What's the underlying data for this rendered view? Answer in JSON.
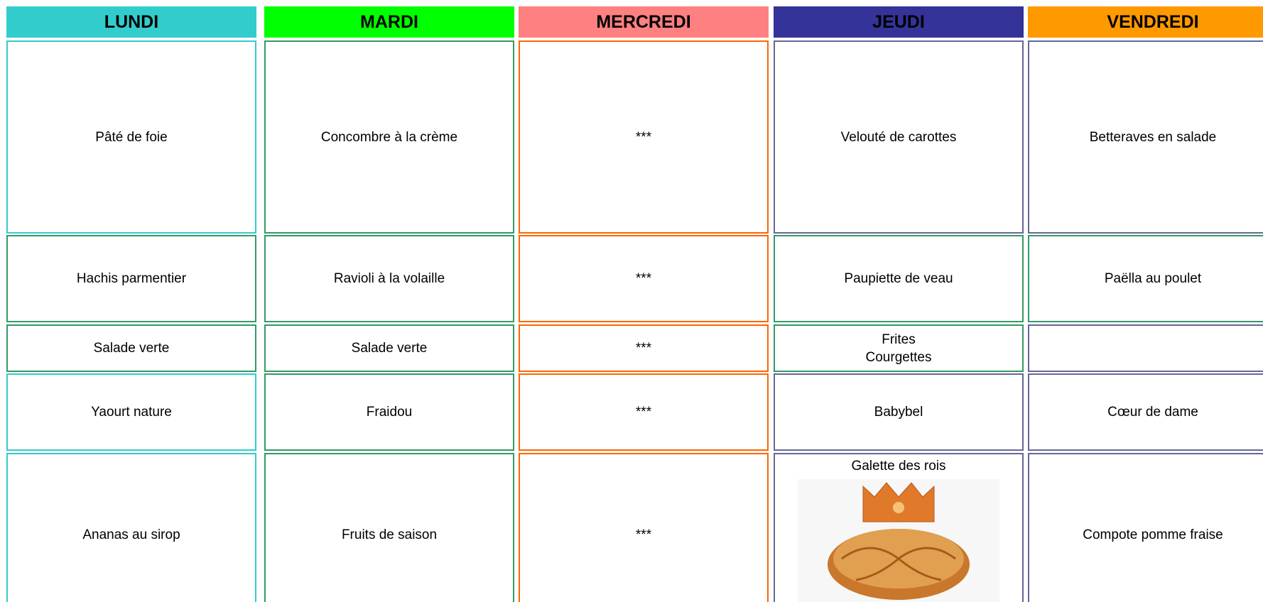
{
  "days": [
    {
      "name": "LUNDI",
      "dishes": [
        [
          "Pâté de foie"
        ],
        [
          "Hachis parmentier"
        ],
        [
          "Salade verte"
        ],
        [
          "Yaourt nature"
        ],
        [
          "Ananas au sirop"
        ]
      ]
    },
    {
      "name": "MARDI",
      "dishes": [
        [
          "Concombre à la crème"
        ],
        [
          "Ravioli à la volaille"
        ],
        [
          "Salade verte"
        ],
        [
          "Fraidou"
        ],
        [
          "Fruits de saison"
        ]
      ]
    },
    {
      "name": "MERCREDI",
      "dishes": [
        [
          "***"
        ],
        [
          "***"
        ],
        [
          "***"
        ],
        [
          "***"
        ],
        [
          "***"
        ]
      ]
    },
    {
      "name": "JEUDI",
      "dishes": [
        [
          "Velouté de carottes"
        ],
        [
          "Paupiette de veau"
        ],
        [
          "Frites",
          "Courgettes"
        ],
        [
          "Babybel"
        ],
        [
          "Galette des rois"
        ]
      ]
    },
    {
      "name": "VENDREDI",
      "dishes": [
        [
          "Betteraves en salade"
        ],
        [
          "Paëlla au poulet"
        ],
        [],
        [
          "Cœur de dame"
        ],
        [
          "Compote pomme fraise"
        ]
      ]
    }
  ]
}
